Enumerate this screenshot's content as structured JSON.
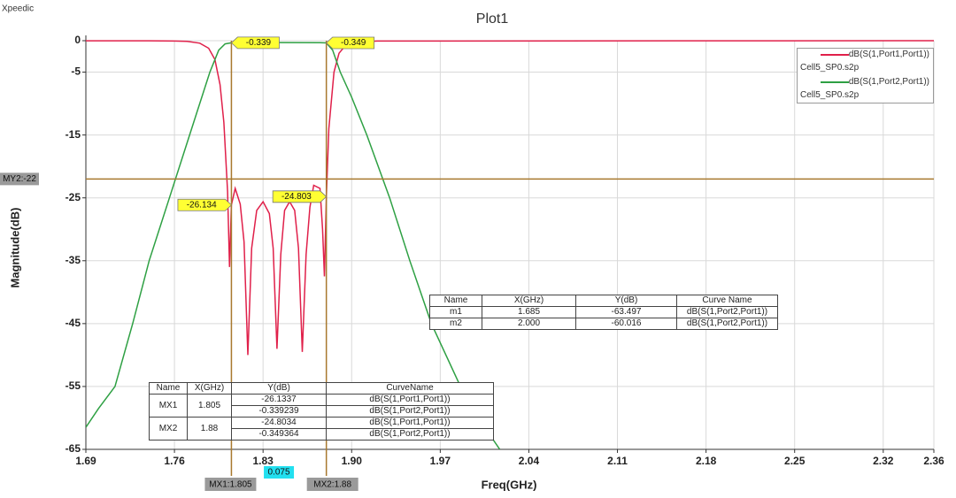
{
  "app_name": "Xpeedic",
  "chart_data": {
    "type": "line",
    "title": "Plot1",
    "xlabel": "Freq(GHz)",
    "ylabel": "Magnitude(dB)",
    "xlim": [
      1.69,
      2.36
    ],
    "ylim": [
      -65,
      0
    ],
    "xticks": [
      1.69,
      1.76,
      1.83,
      {
        "value": 1.9,
        "label": "1.90"
      },
      1.97,
      2.04,
      2.11,
      2.18,
      2.25,
      2.32,
      2.36
    ],
    "yticks": [
      0,
      -5,
      -15,
      -25,
      -35,
      -45,
      -55,
      -65
    ],
    "grid": true,
    "legend": "top-right",
    "series": [
      {
        "name": "dB(S(1,Port1,Port1))",
        "file": "Cell5_SP0.s2p",
        "color": "#e0204a",
        "x": [
          1.69,
          1.74,
          1.76,
          1.77,
          1.78,
          1.787,
          1.792,
          1.796,
          1.799,
          1.802,
          1.8035,
          1.805,
          1.808,
          1.812,
          1.815,
          1.818,
          1.821,
          1.825,
          1.83,
          1.835,
          1.838,
          1.841,
          1.844,
          1.847,
          1.851,
          1.855,
          1.858,
          1.861,
          1.864,
          1.867,
          1.87,
          1.875,
          1.877,
          1.8785,
          1.88,
          1.882,
          1.886,
          1.89,
          1.895,
          1.9,
          1.92,
          2.36
        ],
        "values": [
          -0.01,
          -0.02,
          -0.05,
          -0.1,
          -0.4,
          -1.2,
          -3,
          -7,
          -13,
          -24,
          -36,
          -26.134,
          -23.5,
          -26,
          -32,
          -50,
          -33,
          -27,
          -25.6,
          -27.5,
          -33,
          -49,
          -34,
          -27,
          -25.6,
          -27,
          -33,
          -49.5,
          -34,
          -26.5,
          -23,
          -23.5,
          -30,
          -37.5,
          -24.803,
          -14,
          -5,
          -2,
          -0.8,
          -0.3,
          -0.05,
          0
        ]
      },
      {
        "name": "dB(S(1,Port2,Port1))",
        "file": "Cell5_SP0.s2p",
        "color": "#2ea043",
        "x": [
          1.69,
          1.7,
          1.713,
          1.727,
          1.74,
          1.756,
          1.772,
          1.788,
          1.795,
          1.8,
          1.805,
          1.84,
          1.875,
          1.88,
          1.885,
          1.891,
          1.9,
          1.912,
          1.93,
          1.946,
          1.963,
          1.986,
          2.0,
          2.017
        ],
        "values": [
          -61.5,
          -58.5,
          -55,
          -45,
          -35,
          -25,
          -15,
          -5,
          -1.5,
          -0.5,
          -0.339,
          -0.3,
          -0.32,
          -0.349,
          -1.5,
          -5,
          -9,
          -15,
          -25,
          -35,
          -45,
          -55,
          -60.016,
          -65
        ]
      }
    ],
    "x_markers": [
      {
        "label": "MX1:1.805",
        "value": 1.805
      },
      {
        "label": "MX2:1.88",
        "value": 1.88
      }
    ],
    "delta_label": "0.075",
    "y_marker": {
      "label": "MY2:-22",
      "value": -22
    },
    "flags": [
      {
        "label": "-0.339",
        "x": 1.805,
        "y": -0.339
      },
      {
        "label": "-0.349",
        "x": 1.88,
        "y": -0.349
      },
      {
        "label": "-26.134",
        "x": 1.805,
        "y": -26.134
      },
      {
        "label": "-24.803",
        "x": 1.88,
        "y": -24.803
      }
    ],
    "point_markers": [
      {
        "label": "m2",
        "x": 2.0,
        "y": -60.016
      }
    ]
  },
  "mx_table": {
    "header": [
      "Name",
      "X(GHz)",
      "Y(dB)",
      "CurveName"
    ],
    "groups": [
      {
        "name": "MX1",
        "x": "1.805",
        "rows": [
          [
            "-26.1337",
            "dB(S(1,Port1,Port1))"
          ],
          [
            "-0.339239",
            "dB(S(1,Port2,Port1))"
          ]
        ]
      },
      {
        "name": "MX2",
        "x": "1.88",
        "rows": [
          [
            "-24.8034",
            "dB(S(1,Port1,Port1))"
          ],
          [
            "-0.349364",
            "dB(S(1,Port2,Port1))"
          ]
        ]
      }
    ]
  },
  "marker_table": {
    "header": [
      "Name",
      "X(GHz)",
      "Y(dB)",
      "Curve Name"
    ],
    "rows": [
      [
        "m1",
        "1.685",
        "-63.497",
        "dB(S(1,Port2,Port1))"
      ],
      [
        "m2",
        "2.000",
        "-60.016",
        "dB(S(1,Port2,Port1))"
      ]
    ]
  }
}
